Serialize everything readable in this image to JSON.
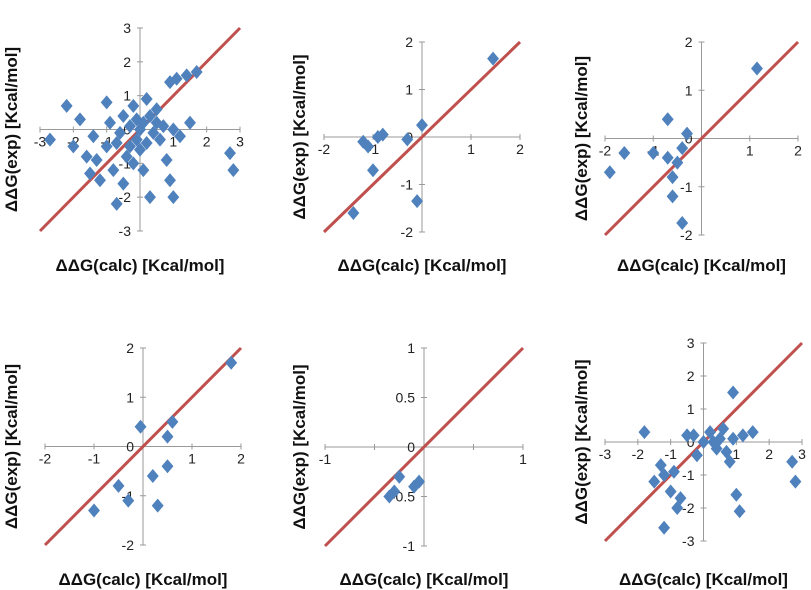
{
  "colors": {
    "point": "#4f81bd",
    "fit_line": "#c0504d",
    "axis": "#999999"
  },
  "chart_data": [
    {
      "type": "scatter",
      "xlabel": "ΔΔG(calc) [Kcal/mol]",
      "ylabel": "ΔΔG(exp) [Kcal/mol]",
      "xlim": [
        -3,
        3
      ],
      "ylim": [
        -3,
        3
      ],
      "xticks": [
        -3,
        -2,
        -1,
        0,
        1,
        2,
        3
      ],
      "xtick_labels": [
        "-3",
        "-2",
        "-1",
        "0",
        "1",
        "2",
        "3"
      ],
      "yticks": [
        -3,
        -2,
        -1,
        0,
        1,
        2,
        3
      ],
      "ytick_labels": [
        "-3",
        "-2",
        "-1",
        "0",
        "1",
        "2",
        "3"
      ],
      "diagonal": [
        [
          -3,
          -3
        ],
        [
          3,
          3
        ]
      ],
      "points": [
        [
          -2.7,
          -0.3
        ],
        [
          -2.2,
          0.7
        ],
        [
          -2.0,
          -0.5
        ],
        [
          -1.8,
          0.3
        ],
        [
          -1.6,
          -0.8
        ],
        [
          -1.5,
          -1.3
        ],
        [
          -1.4,
          -0.2
        ],
        [
          -1.3,
          -0.9
        ],
        [
          -1.2,
          -1.5
        ],
        [
          -1.0,
          0.8
        ],
        [
          -1.0,
          -0.5
        ],
        [
          -0.9,
          0.2
        ],
        [
          -0.8,
          -1.2
        ],
        [
          -0.7,
          -2.2
        ],
        [
          -0.7,
          -0.4
        ],
        [
          -0.6,
          -0.1
        ],
        [
          -0.5,
          0.4
        ],
        [
          -0.5,
          -1.6
        ],
        [
          -0.4,
          -0.8
        ],
        [
          -0.3,
          0.1
        ],
        [
          -0.3,
          -0.5
        ],
        [
          -0.2,
          -1.0
        ],
        [
          -0.1,
          0.3
        ],
        [
          -0.1,
          -0.3
        ],
        [
          0.0,
          0.0
        ],
        [
          0.0,
          -0.6
        ],
        [
          0.1,
          0.2
        ],
        [
          0.1,
          -1.2
        ],
        [
          0.2,
          -0.4
        ],
        [
          0.3,
          0.4
        ],
        [
          0.3,
          -2.0
        ],
        [
          0.4,
          -0.1
        ],
        [
          0.5,
          0.6
        ],
        [
          0.5,
          0.2
        ],
        [
          0.6,
          -0.3
        ],
        [
          0.7,
          0.1
        ],
        [
          0.8,
          -0.9
        ],
        [
          0.9,
          1.4
        ],
        [
          0.9,
          -1.5
        ],
        [
          1.0,
          0.0
        ],
        [
          1.0,
          -2.0
        ],
        [
          1.1,
          1.5
        ],
        [
          1.2,
          -0.2
        ],
        [
          1.4,
          1.6
        ],
        [
          1.5,
          0.2
        ],
        [
          1.7,
          1.7
        ],
        [
          2.7,
          -0.7
        ],
        [
          2.8,
          -1.2
        ],
        [
          -0.2,
          0.7
        ],
        [
          0.2,
          0.9
        ]
      ]
    },
    {
      "type": "scatter",
      "xlabel": "ΔΔG(calc) [Kcal/mol]",
      "ylabel": "ΔΔG(exp) [Kcal/mol]",
      "xlim": [
        -2,
        2
      ],
      "ylim": [
        -2,
        2
      ],
      "xticks": [
        -2,
        -1,
        0,
        1,
        2
      ],
      "xtick_labels": [
        "-2",
        "-1",
        "0",
        "1",
        "2"
      ],
      "yticks": [
        -2,
        -1,
        0,
        1,
        2
      ],
      "ytick_labels": [
        "-2",
        "-1",
        "0",
        "1",
        "2"
      ],
      "diagonal": [
        [
          -2,
          -2
        ],
        [
          2,
          2
        ]
      ],
      "points": [
        [
          -1.4,
          -1.6
        ],
        [
          -1.2,
          -0.1
        ],
        [
          -1.1,
          -0.2
        ],
        [
          -1.0,
          -0.7
        ],
        [
          -0.9,
          0.0
        ],
        [
          -0.8,
          0.05
        ],
        [
          -0.3,
          -0.05
        ],
        [
          -0.1,
          -1.35
        ],
        [
          0.0,
          0.25
        ],
        [
          1.45,
          1.65
        ]
      ]
    },
    {
      "type": "scatter",
      "xlabel": "ΔΔG(calc) [Kcal/mol]",
      "ylabel": "ΔΔG(exp) [Kcal/mol]",
      "xlim": [
        -2,
        2
      ],
      "ylim": [
        -2,
        2
      ],
      "xticks": [
        -2,
        -1,
        0,
        1,
        2
      ],
      "xtick_labels": [
        "-2",
        "-1",
        "0",
        "1",
        "2"
      ],
      "yticks": [
        -2,
        -1,
        0,
        1,
        2
      ],
      "ytick_labels": [
        "-2",
        "-1",
        "0",
        "1",
        "2"
      ],
      "diagonal": [
        [
          -2,
          -2
        ],
        [
          2,
          2
        ]
      ],
      "points": [
        [
          -1.9,
          -0.7
        ],
        [
          -1.6,
          -0.3
        ],
        [
          -1.0,
          -0.3
        ],
        [
          -0.7,
          0.4
        ],
        [
          -0.7,
          -0.4
        ],
        [
          -0.6,
          -0.8
        ],
        [
          -0.6,
          -1.2
        ],
        [
          -0.5,
          -0.5
        ],
        [
          -0.4,
          -1.75
        ],
        [
          -0.4,
          -0.2
        ],
        [
          -0.3,
          0.1
        ],
        [
          1.15,
          1.45
        ]
      ]
    },
    {
      "type": "scatter",
      "xlabel": "ΔΔG(calc) [Kcal/mol]",
      "ylabel": "ΔΔG(exp) [Kcal/mol]",
      "xlim": [
        -2,
        2
      ],
      "ylim": [
        -2,
        2
      ],
      "xticks": [
        -2,
        -1,
        0,
        1,
        2
      ],
      "xtick_labels": [
        "-2",
        "-1",
        "0",
        "1",
        "2"
      ],
      "yticks": [
        -2,
        -1,
        0,
        1,
        2
      ],
      "ytick_labels": [
        "-2",
        "-1",
        "0",
        "1",
        "2"
      ],
      "diagonal": [
        [
          -2,
          -2
        ],
        [
          2,
          2
        ]
      ],
      "points": [
        [
          -1.0,
          -1.3
        ],
        [
          -0.5,
          -0.8
        ],
        [
          -0.3,
          -1.1
        ],
        [
          -0.05,
          0.4
        ],
        [
          0.2,
          -0.6
        ],
        [
          0.3,
          -1.2
        ],
        [
          0.5,
          -0.4
        ],
        [
          0.5,
          0.2
        ],
        [
          0.6,
          0.5
        ],
        [
          1.8,
          1.7
        ]
      ]
    },
    {
      "type": "scatter",
      "xlabel": "ΔΔG(calc) [Kcal/mol]",
      "ylabel": "ΔΔG(exp) [Kcal/mol]",
      "xlim": [
        -1,
        1
      ],
      "ylim": [
        -1,
        1
      ],
      "xticks": [
        -1,
        -0.5,
        0,
        0.5,
        1
      ],
      "xtick_labels": [
        "-1",
        "",
        "0",
        "",
        "1"
      ],
      "yticks": [
        -1,
        -0.5,
        0,
        0.5,
        1
      ],
      "ytick_labels": [
        "-1",
        "-0.5",
        "0",
        "0.5",
        "1"
      ],
      "diagonal": [
        [
          -1,
          -1
        ],
        [
          1,
          1
        ]
      ],
      "points": [
        [
          -0.35,
          -0.5
        ],
        [
          -0.3,
          -0.45
        ],
        [
          -0.25,
          -0.3
        ],
        [
          -0.1,
          -0.4
        ],
        [
          -0.05,
          -0.35
        ]
      ]
    },
    {
      "type": "scatter",
      "xlabel": "ΔΔG(calc) [Kcal/mol]",
      "ylabel": "ΔΔG(exp) [Kcal/mol]",
      "xlim": [
        -3,
        3
      ],
      "ylim": [
        -3,
        3
      ],
      "xticks": [
        -3,
        -2,
        -1,
        0,
        1,
        2,
        3
      ],
      "xtick_labels": [
        "-3",
        "-2",
        "-1",
        "0",
        "1",
        "2",
        "3"
      ],
      "yticks": [
        -3,
        -2,
        -1,
        0,
        1,
        2,
        3
      ],
      "ytick_labels": [
        "-3",
        "-2",
        "-1",
        "0",
        "1",
        "2",
        "3"
      ],
      "diagonal": [
        [
          -3,
          -3
        ],
        [
          3,
          3
        ]
      ],
      "points": [
        [
          -1.8,
          0.3
        ],
        [
          -1.5,
          -1.2
        ],
        [
          -1.3,
          -0.7
        ],
        [
          -1.2,
          -1.0
        ],
        [
          -1.0,
          -1.5
        ],
        [
          -0.9,
          -0.9
        ],
        [
          -0.8,
          -2.0
        ],
        [
          -0.7,
          -1.7
        ],
        [
          -1.2,
          -2.6
        ],
        [
          -0.5,
          0.2
        ],
        [
          -0.3,
          0.2
        ],
        [
          -0.2,
          -0.4
        ],
        [
          0.0,
          0.0
        ],
        [
          0.2,
          0.3
        ],
        [
          0.4,
          -0.2
        ],
        [
          0.5,
          0.1
        ],
        [
          0.6,
          0.4
        ],
        [
          0.7,
          -0.3
        ],
        [
          0.8,
          -0.6
        ],
        [
          0.9,
          0.1
        ],
        [
          0.9,
          1.5
        ],
        [
          1.0,
          -1.6
        ],
        [
          1.1,
          -2.1
        ],
        [
          1.2,
          0.2
        ],
        [
          1.5,
          0.3
        ],
        [
          2.7,
          -0.6
        ],
        [
          2.8,
          -1.2
        ],
        [
          0.3,
          0.0
        ]
      ]
    }
  ]
}
